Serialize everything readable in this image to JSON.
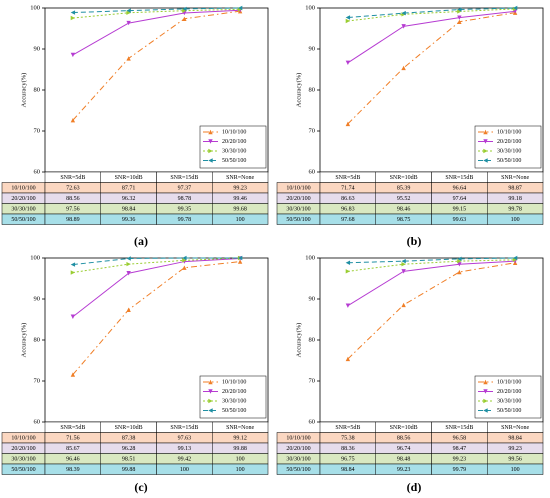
{
  "colors": {
    "s1": "#f07e26",
    "s2": "#b63cd2",
    "s3": "#9acd32",
    "s4": "#1f8fa3",
    "row1": "#fbd7c1",
    "row2": "#e6dcec",
    "row3": "#d9e8c1",
    "row4": "#a7dfe8",
    "header_bg": "#ffffff"
  },
  "chart_data": [
    {
      "type": "line",
      "panel_label": "(a)",
      "ylabel": "Accuracy(%)",
      "ylim": [
        60,
        100
      ],
      "yticks": [
        60,
        70,
        80,
        90,
        100
      ],
      "categories": [
        "SNR=5dB",
        "SNR=10dB",
        "SNR=15dB",
        "SNR=None"
      ],
      "legend_position": "bottom-right",
      "series": [
        {
          "name": "10/10/100",
          "values": [
            72.63,
            87.71,
            97.37,
            99.23
          ]
        },
        {
          "name": "20/20/100",
          "values": [
            88.56,
            96.32,
            98.78,
            99.46
          ]
        },
        {
          "name": "30/30/100",
          "values": [
            97.56,
            98.84,
            99.35,
            99.68
          ]
        },
        {
          "name": "50/50/100",
          "values": [
            98.89,
            99.36,
            99.78,
            100
          ]
        }
      ],
      "table": {
        "header": [
          "",
          "SNR=5dB",
          "SNR=10dB",
          "SNR=15dB",
          "SNR=None"
        ],
        "rows": [
          [
            "10/10/100",
            "72.63",
            "87.71",
            "97.37",
            "99.23"
          ],
          [
            "20/20/100",
            "88.56",
            "96.32",
            "98.78",
            "99.46"
          ],
          [
            "30/30/100",
            "97.56",
            "98.84",
            "99.35",
            "99.68"
          ],
          [
            "50/50/100",
            "98.89",
            "99.36",
            "99.78",
            "100"
          ]
        ]
      }
    },
    {
      "type": "line",
      "panel_label": "(b)",
      "ylabel": "Accuracy(%)",
      "ylim": [
        60,
        100
      ],
      "yticks": [
        60,
        70,
        80,
        90,
        100
      ],
      "categories": [
        "SNR=5dB",
        "SNR=10dB",
        "SNR=15dB",
        "SNR=None"
      ],
      "legend_position": "bottom-right",
      "series": [
        {
          "name": "10/10/100",
          "values": [
            71.74,
            85.39,
            96.64,
            98.87
          ]
        },
        {
          "name": "20/20/100",
          "values": [
            86.63,
            95.52,
            97.64,
            99.18
          ]
        },
        {
          "name": "30/30/100",
          "values": [
            96.83,
            98.46,
            99.15,
            99.78
          ]
        },
        {
          "name": "50/50/100",
          "values": [
            97.68,
            98.75,
            99.63,
            100
          ]
        }
      ],
      "table": {
        "header": [
          "",
          "SNR=5dB",
          "SNR=10dB",
          "SNR=15dB",
          "SNR=None"
        ],
        "rows": [
          [
            "10/10/100",
            "71.74",
            "85.39",
            "96.64",
            "98.87"
          ],
          [
            "20/20/100",
            "86.63",
            "95.52",
            "97.64",
            "99.18"
          ],
          [
            "30/30/100",
            "96.83",
            "98.46",
            "99.15",
            "99.78"
          ],
          [
            "50/50/100",
            "97.68",
            "98.75",
            "99.63",
            "100"
          ]
        ]
      }
    },
    {
      "type": "line",
      "panel_label": "(c)",
      "ylabel": "Accuracy(%)",
      "ylim": [
        60,
        100
      ],
      "yticks": [
        60,
        70,
        80,
        90,
        100
      ],
      "categories": [
        "SNR=5dB",
        "SNR=10dB",
        "SNR=15dB",
        "SNR=None"
      ],
      "legend_position": "bottom-right",
      "series": [
        {
          "name": "10/10/100",
          "values": [
            71.56,
            87.38,
            97.63,
            99.12
          ]
        },
        {
          "name": "20/20/100",
          "values": [
            85.67,
            96.28,
            99.13,
            99.88
          ]
        },
        {
          "name": "30/30/100",
          "values": [
            96.46,
            98.51,
            99.42,
            100
          ]
        },
        {
          "name": "50/50/100",
          "values": [
            98.39,
            99.88,
            100,
            100
          ]
        }
      ],
      "table": {
        "header": [
          "",
          "SNR=5dB",
          "SNR=10dB",
          "SNR=15dB",
          "SNR=None"
        ],
        "rows": [
          [
            "10/10/100",
            "71.56",
            "87.38",
            "97.63",
            "99.12"
          ],
          [
            "20/20/100",
            "85.67",
            "96.28",
            "99.13",
            "99.88"
          ],
          [
            "30/30/100",
            "96.46",
            "98.51",
            "99.42",
            "100"
          ],
          [
            "50/50/100",
            "98.39",
            "99.88",
            "100",
            "100"
          ]
        ]
      }
    },
    {
      "type": "line",
      "panel_label": "(d)",
      "ylabel": "Accuracy(%)",
      "ylim": [
        60,
        100
      ],
      "yticks": [
        60,
        70,
        80,
        90,
        100
      ],
      "categories": [
        "SNR=5dB",
        "SNR=10dB",
        "SNR=15dB",
        "SNR=None"
      ],
      "legend_position": "bottom-right",
      "series": [
        {
          "name": "10/10/100",
          "values": [
            75.38,
            88.56,
            96.58,
            98.84
          ]
        },
        {
          "name": "20/20/100",
          "values": [
            88.36,
            96.74,
            98.47,
            99.23
          ]
        },
        {
          "name": "30/30/100",
          "values": [
            96.75,
            98.48,
            99.23,
            99.56
          ]
        },
        {
          "name": "50/50/100",
          "values": [
            98.84,
            99.23,
            99.79,
            100
          ]
        }
      ],
      "table": {
        "header": [
          "",
          "SNR=5dB",
          "SNR=10dB",
          "SNR=15dB",
          "SNR=None"
        ],
        "rows": [
          [
            "10/10/100",
            "75.38",
            "88.56",
            "96.58",
            "98.84"
          ],
          [
            "20/20/100",
            "88.36",
            "96.74",
            "98.47",
            "99.23"
          ],
          [
            "30/30/100",
            "96.75",
            "98.48",
            "99.23",
            "99.56"
          ],
          [
            "50/50/100",
            "98.84",
            "99.23",
            "99.79",
            "100"
          ]
        ]
      }
    }
  ]
}
